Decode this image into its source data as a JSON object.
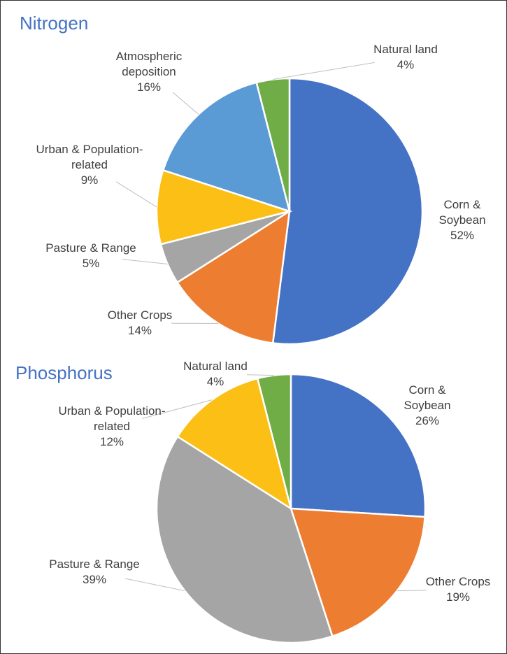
{
  "chart_data": [
    {
      "type": "pie",
      "title": "Nitrogen",
      "categories": [
        "Corn & Soybean",
        "Other Crops",
        "Pasture & Range",
        "Urban & Population-related",
        "Atmospheric deposition",
        "Natural land"
      ],
      "values": [
        52,
        14,
        5,
        9,
        16,
        4
      ],
      "value_labels": [
        "52%",
        "14%",
        "5%",
        "9%",
        "16%",
        "4%"
      ],
      "colors": [
        "#4472c4",
        "#ed7d31",
        "#a5a5a5",
        "#fbbf16",
        "#5b9bd5",
        "#70ad47"
      ]
    },
    {
      "type": "pie",
      "title": "Phosphorus",
      "categories": [
        "Corn & Soybean",
        "Other Crops",
        "Pasture & Range",
        "Urban & Population-related",
        "Natural land"
      ],
      "values": [
        26,
        19,
        39,
        12,
        4
      ],
      "value_labels": [
        "26%",
        "19%",
        "39%",
        "12%",
        "4%"
      ],
      "colors": [
        "#4472c4",
        "#ed7d31",
        "#a5a5a5",
        "#fbbf16",
        "#70ad47"
      ]
    }
  ]
}
